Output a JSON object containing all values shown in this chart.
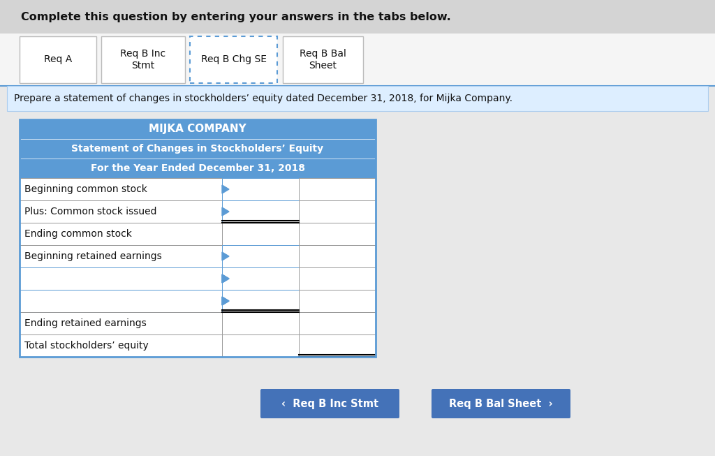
{
  "background_color": "#e8e8e8",
  "top_banner_color": "#d4d4d4",
  "top_text": "Complete this question by entering your answers in the tabs below.",
  "tabs": [
    {
      "label": "Req A",
      "active": false
    },
    {
      "label": "Req B Inc\nStmt",
      "active": false
    },
    {
      "label": "Req B Chg SE",
      "active": true
    },
    {
      "label": "Req B Bal\nSheet",
      "active": false
    }
  ],
  "tab_area_color": "#ffffff",
  "tab_border_color": "#bbbbbb",
  "active_tab_border_color": "#5b9bd5",
  "instruction_bg": "#ddeeff",
  "instruction": "Prepare a statement of changes in stockholders’ equity dated December 31, 2018, for Mijka Company.",
  "table_header_color": "#5b9bd5",
  "table_header_text_color": "#ffffff",
  "company_name": "MIJKA COMPANY",
  "stmt_title": "Statement of Changes in Stockholders’ Equity",
  "period": "For the Year Ended December 31, 2018",
  "rows": [
    {
      "label": "Beginning common stock",
      "arrow_col1": true,
      "arrow_col2": false,
      "blue_col1": false,
      "blue_col2": true
    },
    {
      "label": "Plus: Common stock issued",
      "arrow_col1": true,
      "arrow_col2": false,
      "blue_col1": false,
      "blue_col2": true,
      "double_bottom_col2": true
    },
    {
      "label": "Ending common stock",
      "arrow_col1": false,
      "arrow_col2": false,
      "blue_col1": false,
      "blue_col2": false
    },
    {
      "label": "Beginning retained earnings",
      "arrow_col1": true,
      "arrow_col2": false,
      "blue_col1": false,
      "blue_col2": true
    },
    {
      "label": "",
      "arrow_col1": true,
      "arrow_col2": true,
      "blue_col1": true,
      "blue_col2": true
    },
    {
      "label": "",
      "arrow_col1": true,
      "arrow_col2": true,
      "blue_col1": true,
      "blue_col2": true,
      "double_bottom_col2": true
    },
    {
      "label": "Ending retained earnings",
      "arrow_col1": false,
      "arrow_col2": false,
      "blue_col1": false,
      "blue_col2": false
    },
    {
      "label": "Total stockholders’ equity",
      "arrow_col1": false,
      "arrow_col2": false,
      "blue_col1": false,
      "blue_col2": false,
      "double_bottom_col3": true
    }
  ],
  "btn_left_label": "‹  Req B Inc Stmt",
  "btn_right_label": "Req B Bal Sheet  ›",
  "btn_color": "#4472b8",
  "btn_text_color": "#ffffff"
}
